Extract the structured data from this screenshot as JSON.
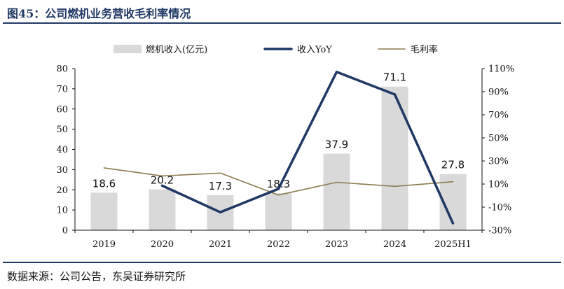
{
  "figure": {
    "title": "图45：公司燃机业务营收毛利率情况",
    "source": "数据来源：公司公告，东吴证券研究所"
  },
  "chart_data": {
    "type": "bar",
    "categories": [
      "2019",
      "2020",
      "2021",
      "2022",
      "2023",
      "2024",
      "2025H1"
    ],
    "series": [
      {
        "name": "燃机收入(亿元)",
        "type": "bar",
        "axis": "left",
        "color": "#d9d9d9",
        "values": [
          18.6,
          20.2,
          17.3,
          18.3,
          37.9,
          71.1,
          27.8
        ],
        "labels": [
          "18.6",
          "20.2",
          "17.3",
          "18.3",
          "37.9",
          "71.1",
          "27.8"
        ]
      },
      {
        "name": "收入YoY",
        "type": "line",
        "axis": "right",
        "color": "#1f3864",
        "values": [
          null,
          8.6,
          -14.4,
          5.8,
          107.1,
          87.6,
          -24.0
        ]
      },
      {
        "name": "毛利率",
        "type": "line",
        "axis": "right",
        "color": "#8c7b4f",
        "values": [
          24.0,
          17.0,
          19.5,
          0.5,
          11.5,
          8.0,
          12.0
        ]
      }
    ],
    "left_axis": {
      "ylim": [
        0,
        80
      ],
      "ticks": [
        "0",
        "10",
        "20",
        "30",
        "40",
        "50",
        "60",
        "70",
        "80"
      ]
    },
    "right_axis": {
      "ylim": [
        -30,
        110
      ],
      "ticks": [
        "-30%",
        "-10%",
        "10%",
        "30%",
        "50%",
        "70%",
        "90%",
        "110%"
      ]
    },
    "legend_position": "top",
    "grid": false
  }
}
